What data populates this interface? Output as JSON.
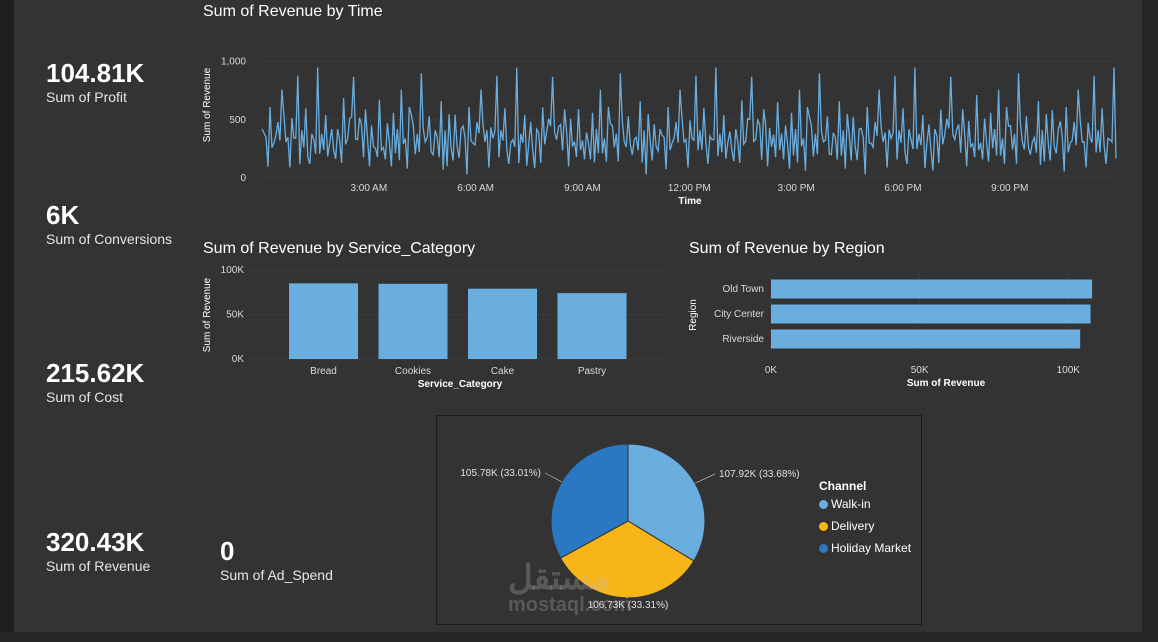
{
  "kpis": {
    "profit": {
      "value": "104.81K",
      "label": "Sum of Profit"
    },
    "conversions": {
      "value": "6K",
      "label": "Sum of Conversions"
    },
    "cost": {
      "value": "215.62K",
      "label": "Sum of Cost"
    },
    "revenue": {
      "value": "320.43K",
      "label": "Sum of Revenue"
    },
    "ad_spend": {
      "value": "0",
      "label": "Sum of Ad_Spend"
    }
  },
  "watermark": {
    "arabic": "مستقل",
    "latin": "mostaql.com"
  },
  "colors": {
    "bar": "#6aaee0",
    "walkin": "#6aaee0",
    "delivery": "#f7b51a",
    "holiday": "#2a78c2",
    "background": "#333333"
  },
  "chart_data": [
    {
      "type": "line",
      "title": "Sum of Revenue by Time",
      "xlabel": "Time",
      "ylabel": "Sum of Revenue",
      "x_tick_labels": [
        "3:00 AM",
        "6:00 AM",
        "9:00 AM",
        "12:00 PM",
        "3:00 PM",
        "6:00 PM",
        "9:00 PM"
      ],
      "y_tick_labels": [
        "0",
        "500",
        "1,000"
      ],
      "ylim": [
        0,
        1100
      ],
      "x_range_minutes": [
        0,
        1439
      ],
      "series": [
        {
          "name": "Sum of Revenue",
          "note_shape": "dense minute-level series fluctuating between about 30 and 1,080",
          "values": [
            420,
            180,
            350,
            90,
            610,
            250,
            300,
            140,
            480,
            220,
            760,
            160,
            310,
            270,
            90,
            520,
            340,
            190,
            880,
            230,
            410,
            150,
            600,
            280,
            120,
            450,
            330,
            210,
            950,
            170,
            380,
            260,
            540,
            110,
            300,
            680,
            240,
            190,
            420,
            360,
            130,
            720,
            290,
            200,
            510,
            160,
            870,
            250,
            330,
            140,
            460,
            220,
            590,
            310,
            100,
            640,
            270,
            380,
            180,
            1080,
            240,
            350,
            160,
            490,
            300,
            210,
            560,
            130,
            420,
            280,
            760,
            190,
            340,
            230,
            610,
            150,
            450,
            260,
            380,
            170,
            900,
            220,
            310,
            140,
            530,
            290,
            200,
            470,
            350,
            120,
            660,
            240,
            410,
            180,
            550,
            300,
            150,
            840,
            270,
            390
          ]
        }
      ]
    },
    {
      "type": "bar",
      "title": "Sum of Revenue by Service_Category",
      "xlabel": "Service_Category",
      "ylabel": "Sum of Revenue",
      "categories": [
        "Bread",
        "Cookies",
        "Cake",
        "Pastry"
      ],
      "values": [
        85000,
        84500,
        79000,
        74000
      ],
      "y_tick_labels": [
        "0K",
        "50K",
        "100K"
      ],
      "ylim": [
        0,
        100000
      ]
    },
    {
      "type": "bar",
      "orientation": "horizontal",
      "title": "Sum of Revenue by Region",
      "xlabel": "Sum of Revenue",
      "ylabel": "Region",
      "categories": [
        "Old Town",
        "City Center",
        "Riverside"
      ],
      "values": [
        108000,
        107500,
        104000
      ],
      "x_tick_labels": [
        "0K",
        "50K",
        "100K"
      ],
      "xlim": [
        0,
        110000
      ]
    },
    {
      "type": "pie",
      "legend_title": "Channel",
      "legend_position": "right",
      "slices": [
        {
          "name": "Walk-in",
          "value": 107920,
          "label": "107.92K (33.68%)"
        },
        {
          "name": "Delivery",
          "value": 106730,
          "label": "106.73K (33.31%)"
        },
        {
          "name": "Holiday Market",
          "value": 105780,
          "label": "105.78K (33.01%)"
        }
      ]
    }
  ]
}
